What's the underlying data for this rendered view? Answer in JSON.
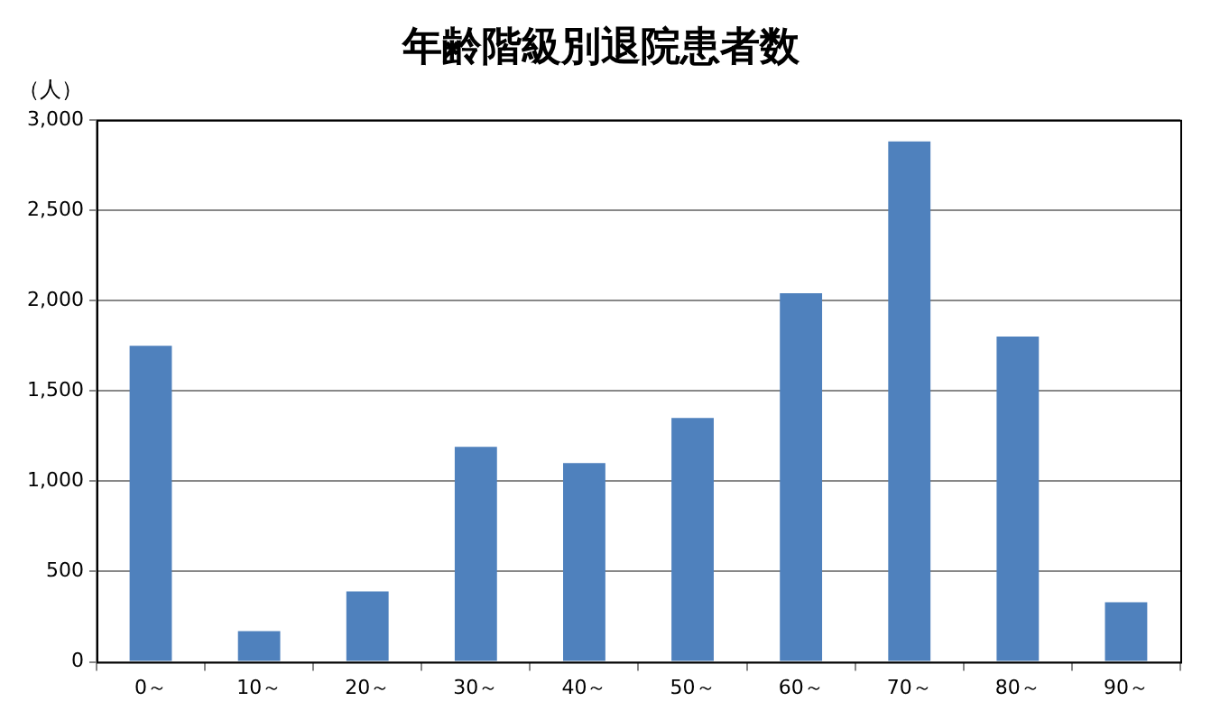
{
  "chart_data": {
    "type": "bar",
    "title": "年齢階級別退院患者数",
    "ylabel": "（人）",
    "categories": [
      "0～",
      "10～",
      "20～",
      "30～",
      "40～",
      "50～",
      "60～",
      "70～",
      "80～",
      "90～"
    ],
    "values": [
      1750,
      170,
      390,
      1190,
      1100,
      1350,
      2040,
      2880,
      1800,
      330
    ],
    "color": "#4f81bd",
    "ylim": [
      0,
      3000
    ],
    "yticks": [
      0,
      500,
      {
        "value": 1000,
        "label": "1,000"
      },
      {
        "value": 1500,
        "label": "1,500"
      },
      {
        "value": 2000,
        "label": "2,000"
      },
      {
        "value": 2500,
        "label": "2,500"
      },
      {
        "value": 3000,
        "label": "3,000"
      }
    ],
    "grid": "y"
  }
}
